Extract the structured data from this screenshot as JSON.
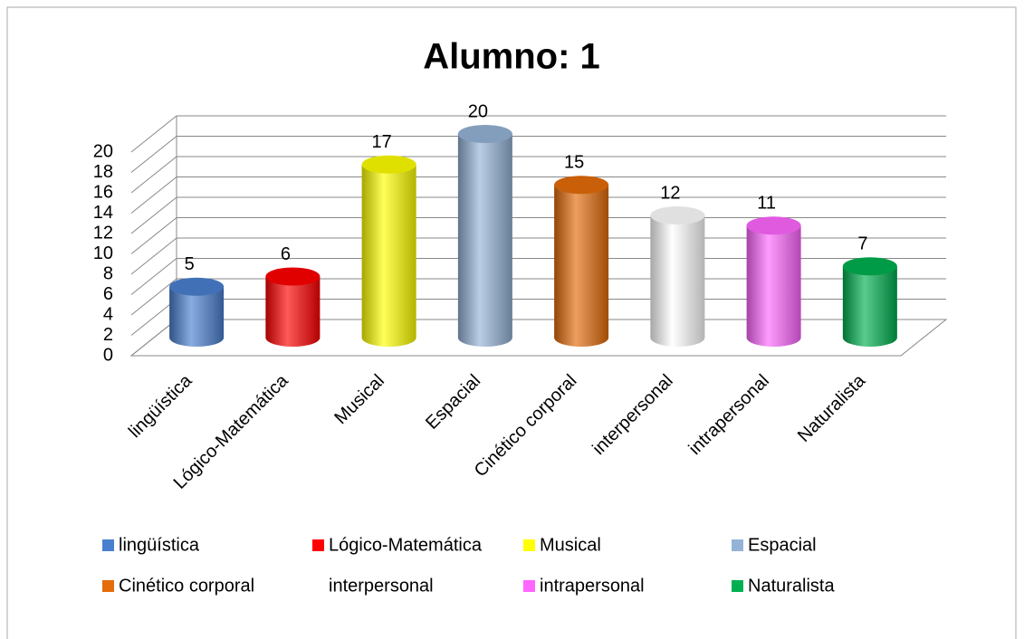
{
  "chart_data": {
    "type": "bar3d",
    "title": "Alumno: 1",
    "categories": [
      "lingüística",
      "Lógico-Matemática",
      "Musical",
      "Espacial",
      "Cinético corporal",
      "interpersonal",
      "intrapersonal",
      "Naturalista"
    ],
    "values": [
      5,
      6,
      17,
      20,
      15,
      12,
      11,
      7
    ],
    "colors": [
      "#4a7fd0",
      "#ff0000",
      "#ffff00",
      "#95b3d7",
      "#e46c0a",
      "#ffffff",
      "#ff66ff",
      "#00b050"
    ],
    "ylim": [
      0,
      20
    ],
    "yticks": [
      0,
      2,
      4,
      6,
      8,
      10,
      12,
      14,
      16,
      18,
      20
    ],
    "grid": true
  }
}
